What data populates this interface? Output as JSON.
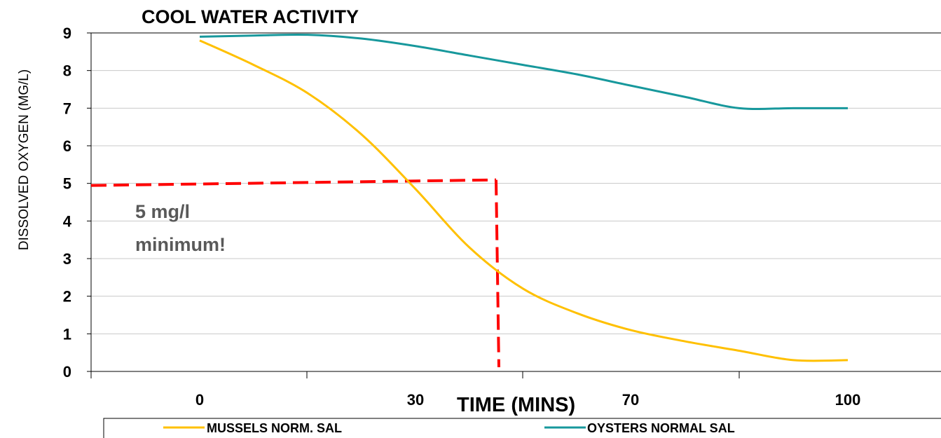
{
  "chart_data": {
    "type": "line",
    "title": "COOL WATER ACTIVITY",
    "xlabel": "TIME (MINS)",
    "ylabel": "DISSOLVED OXYGEN (MG/L)",
    "ylim": [
      0,
      9
    ],
    "yticks": [
      "0",
      "1",
      "2",
      "3",
      "4",
      "5",
      "6",
      "7",
      "8",
      "9"
    ],
    "categories": [
      "0",
      "30",
      "70",
      "100"
    ],
    "grid": true,
    "legend_position": "bottom",
    "series": [
      {
        "name": "MUSSELS NORM. SAL",
        "color": "#FFC000",
        "x": [
          0,
          0.25,
          0.5,
          0.75,
          1.0,
          1.25,
          1.5,
          1.75,
          2.0,
          2.25,
          2.5,
          2.75,
          3.0
        ],
        "values": [
          8.8,
          8.15,
          7.4,
          6.3,
          4.85,
          3.3,
          2.2,
          1.55,
          1.1,
          0.8,
          0.55,
          0.3,
          0.3
        ]
      },
      {
        "name": "OYSTERS NORMAL SAL",
        "color": "#17989C",
        "x": [
          0,
          0.25,
          0.5,
          0.75,
          1.0,
          1.25,
          1.5,
          1.75,
          2.0,
          2.25,
          2.5,
          2.75,
          3.0
        ],
        "values": [
          8.9,
          8.93,
          8.95,
          8.85,
          8.65,
          8.4,
          8.15,
          7.9,
          7.6,
          7.3,
          7.0,
          7.0,
          7.0
        ]
      }
    ],
    "threshold": {
      "value": 5,
      "color": "#FF0000",
      "label_line1": "5 mg/l",
      "label_line2": "minimum!"
    }
  }
}
